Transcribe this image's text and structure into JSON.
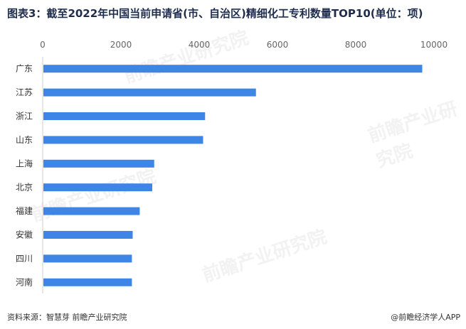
{
  "title": "图表3：截至2022年中国当前申请省(市、自治区)精细化工专利数量TOP10(单位：项)",
  "source": "资料来源：智慧芽 前瞻产业研究院",
  "credit": "@前瞻经济学人APP",
  "watermark": "前瞻产业研究院",
  "colors": {
    "bar": "#3e86e6",
    "axis": "#cfcfcf"
  },
  "chart_data": {
    "type": "bar",
    "orientation": "horizontal",
    "categories": [
      "广东",
      "江苏",
      "浙江",
      "山东",
      "上海",
      "北京",
      "福建",
      "安徽",
      "四川",
      "河南"
    ],
    "values": [
      9700,
      5450,
      4150,
      4100,
      2850,
      2800,
      2480,
      2300,
      2280,
      2280
    ],
    "xlim": [
      0,
      10000
    ],
    "xticks": [
      "0",
      "2000",
      "4000",
      "6000",
      "8000",
      "10000"
    ],
    "tick_values": [
      0,
      2000,
      4000,
      6000,
      8000,
      10000
    ],
    "legend": "none",
    "grid": false
  }
}
